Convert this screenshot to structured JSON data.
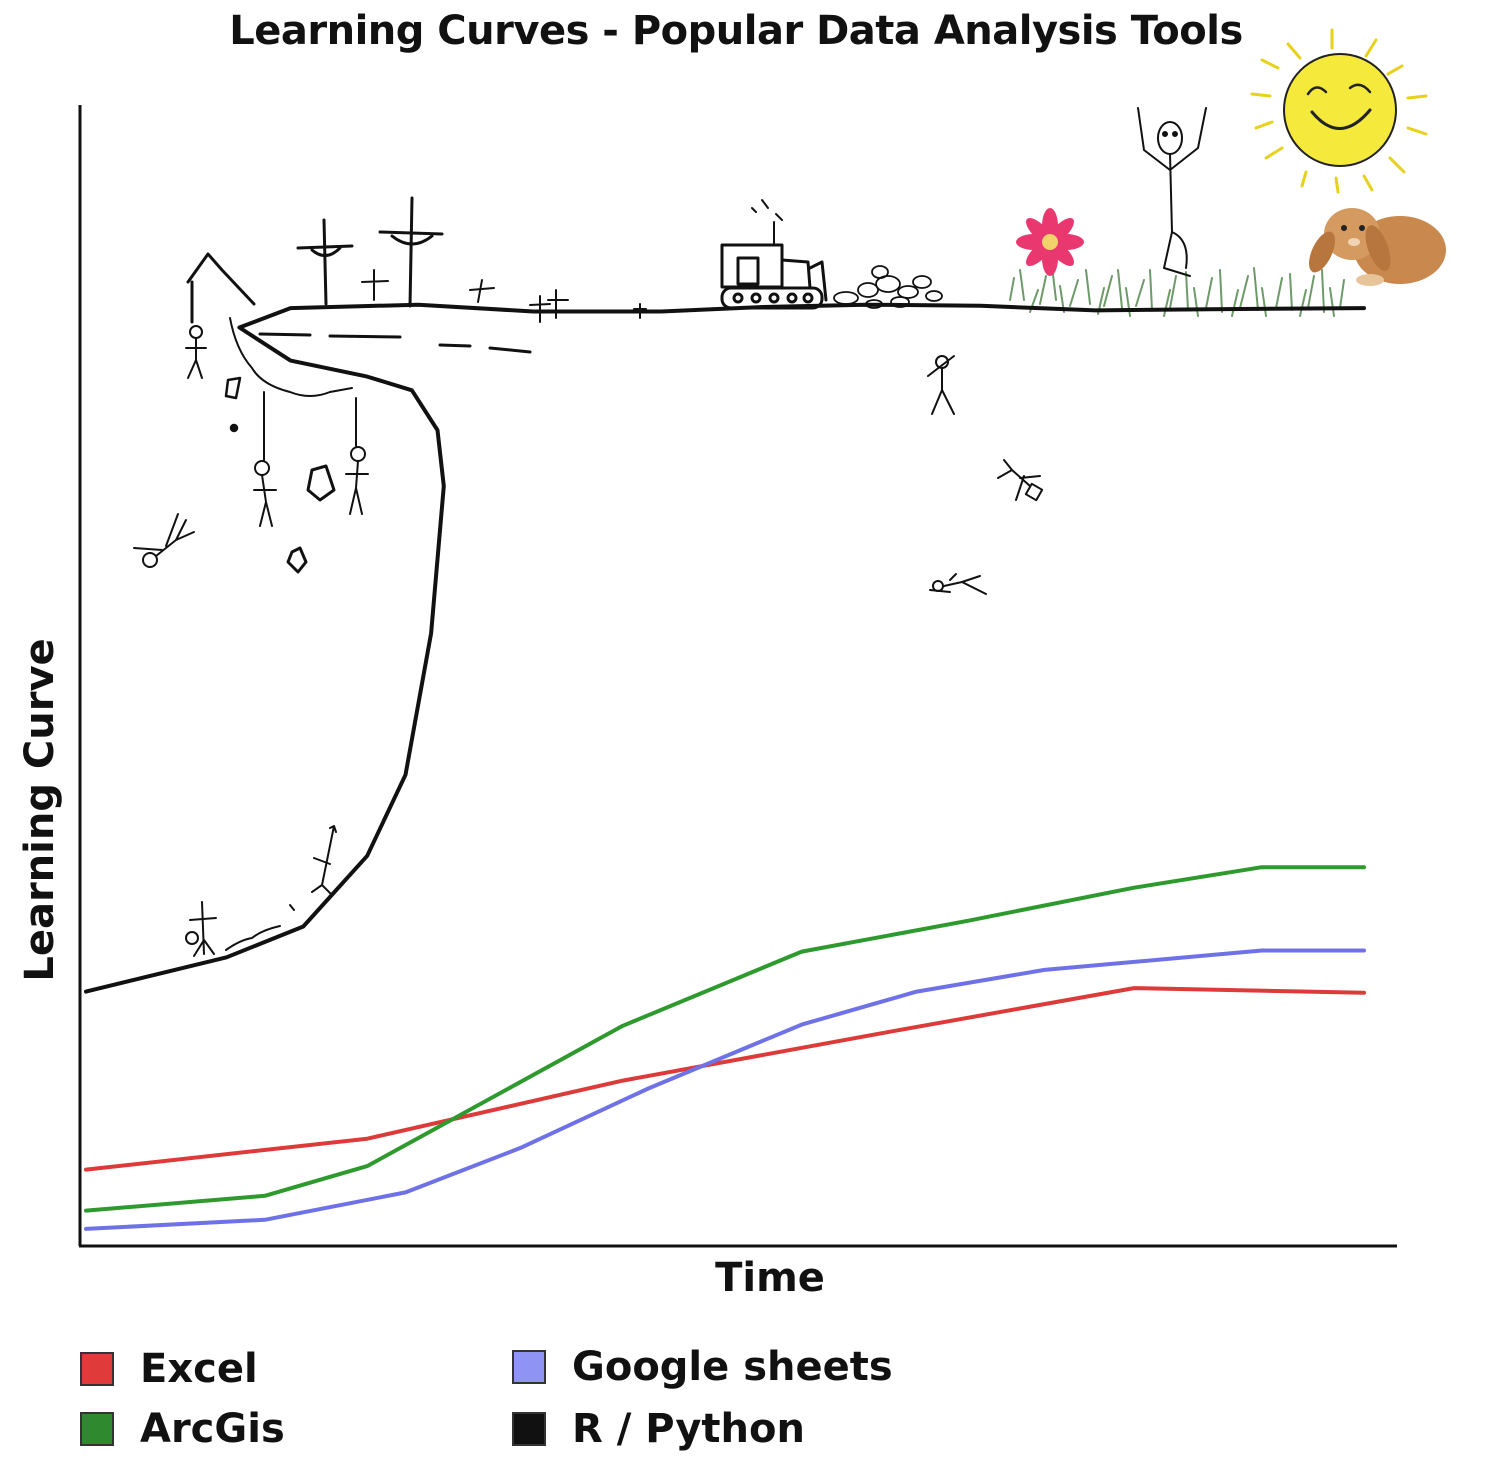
{
  "title": "Learning Curves - Popular Data Analysis Tools",
  "chart_data": {
    "type": "line",
    "title": "Learning Curves - Popular Data Analysis Tools",
    "xlabel": "Time",
    "ylabel": "Learning Curve",
    "xlim": [
      0,
      100
    ],
    "ylim": [
      0,
      100
    ],
    "grid": false,
    "axis_ticks": false,
    "legend_position": "bottom",
    "series": [
      {
        "name": "Excel",
        "color": "#dd3a3a",
        "swatch": "#e03a3a",
        "x": [
          0,
          22,
          42,
          62,
          82,
          100
        ],
        "y": [
          6.7,
          9.4,
          14.5,
          18.6,
          22.6,
          22.2
        ]
      },
      {
        "name": "ArcGis",
        "color": "#2e9a2e",
        "swatch": "#2f8a2f",
        "x": [
          0,
          14,
          22,
          42,
          56,
          69,
          82,
          92,
          100
        ],
        "y": [
          3.1,
          4.4,
          7.0,
          19.3,
          25.8,
          28.5,
          31.4,
          33.2,
          33.2
        ]
      },
      {
        "name": "Google sheets",
        "color": "#6f72e6",
        "swatch": "#8f93f4",
        "x": [
          0,
          14,
          25,
          34,
          44,
          56,
          65,
          75,
          92,
          100
        ],
        "y": [
          1.5,
          2.3,
          4.7,
          8.6,
          13.8,
          19.4,
          22.3,
          24.2,
          25.9,
          25.9
        ]
      },
      {
        "name": "R / Python",
        "color": "#111111",
        "swatch": "#111111",
        "x": [
          0,
          11,
          17,
          22,
          25,
          27,
          28,
          27.5,
          25.5,
          22,
          16,
          12,
          16,
          26,
          35,
          45,
          53,
          61,
          70,
          79,
          88,
          100
        ],
        "y": [
          22.3,
          25.3,
          28.0,
          34.2,
          41.3,
          53.7,
          66.6,
          71.5,
          75.0,
          76.2,
          77.6,
          80.5,
          82.2,
          82.5,
          81.9,
          81.9,
          82.3,
          82.5,
          82.4,
          82.0,
          82.1,
          82.2
        ]
      }
    ]
  },
  "legend": [
    {
      "label": "Excel",
      "swatch": "#e03a3a"
    },
    {
      "label": "Google sheets",
      "swatch": "#8f93f4"
    },
    {
      "label": "ArcGis",
      "swatch": "#2f8a2f"
    },
    {
      "label": "R / Python",
      "swatch": "#111111"
    }
  ],
  "illustration": {
    "icons": [
      "gallows-icon",
      "cross-icon",
      "grave-cross-icon",
      "stick-figure-icon",
      "falling-figure-icon",
      "bulldozer-icon",
      "rubble-icon",
      "flower-icon",
      "grass-icon",
      "happy-figure-icon",
      "sun-icon",
      "bunny-icon"
    ]
  }
}
